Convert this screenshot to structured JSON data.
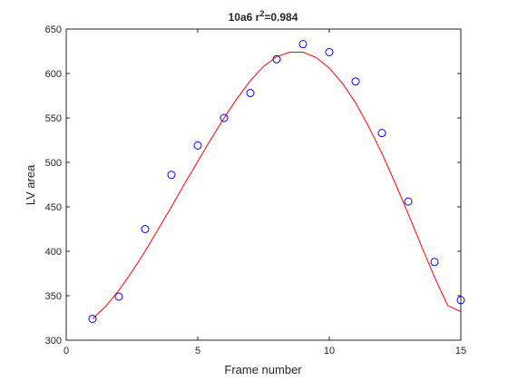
{
  "chart_data": {
    "type": "scatter",
    "title_main": "10a6 r",
    "title_sup": "2",
    "title_rest": "=0.984",
    "xlabel": "Frame number",
    "ylabel": "LV area",
    "xlim": [
      0,
      15
    ],
    "ylim": [
      300,
      650
    ],
    "xticks": [
      "0",
      "5",
      "10",
      "15"
    ],
    "yticks": [
      "300",
      "350",
      "400",
      "450",
      "500",
      "550",
      "600",
      "650"
    ],
    "grid": false,
    "points": {
      "x": [
        1,
        2,
        3,
        4,
        5,
        6,
        7,
        8,
        9,
        10,
        11,
        12,
        13,
        14,
        15
      ],
      "y": [
        324,
        349,
        425,
        486,
        519,
        550,
        578,
        616,
        633,
        624,
        591,
        533,
        456,
        388,
        345
      ],
      "color": "#0000ff",
      "marker": "circle-open"
    },
    "fit": {
      "x": [
        1,
        1.5,
        2,
        2.5,
        3,
        3.5,
        4,
        4.5,
        5,
        5.5,
        6,
        6.5,
        7,
        7.5,
        8,
        8.5,
        9,
        9.5,
        10,
        10.5,
        11,
        11.5,
        12,
        12.5,
        13,
        13.5,
        14,
        14.5,
        15
      ],
      "y": [
        324,
        338,
        356,
        377,
        400,
        425,
        450,
        476,
        501,
        526,
        550,
        572,
        592,
        608,
        619,
        624,
        624,
        618,
        606,
        589,
        567,
        540,
        510,
        477,
        442,
        406,
        371,
        339,
        332
      ],
      "color": "#ff0000"
    }
  }
}
